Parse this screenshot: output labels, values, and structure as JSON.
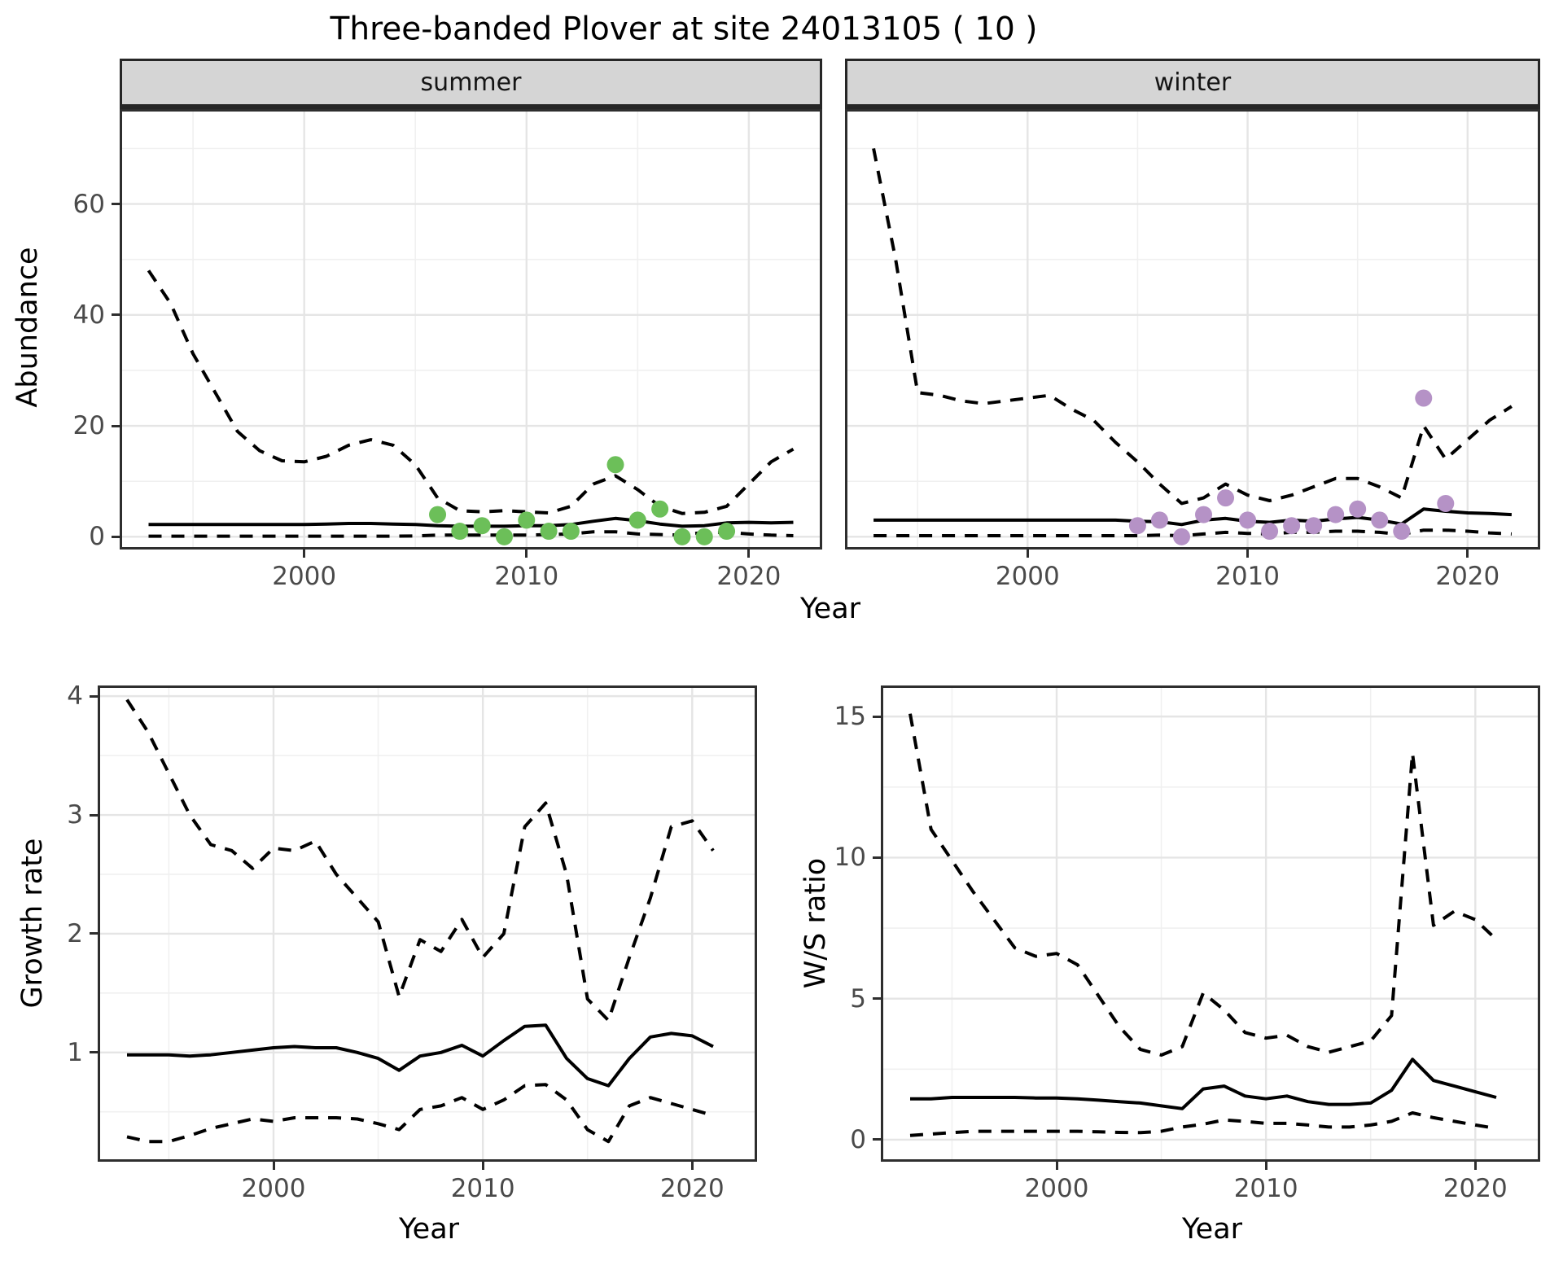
{
  "title": "Three-banded Plover at site 24013105 ( 10 )",
  "axes": {
    "x_label": "Year",
    "abundance_label": "Abundance",
    "growth_label": "Growth rate",
    "ws_label": "W/S ratio"
  },
  "facets": {
    "summer": "summer",
    "winter": "winter"
  },
  "colors": {
    "summer_points": "#6CBF59",
    "winter_points": "#B592C6",
    "line": "#000000",
    "grid_major": "#E5E5E5",
    "grid_minor": "#F0F0F0",
    "panel_border": "#2E2E2E",
    "strip_bg": "#D5D5D5",
    "tick_text": "#4A4A4A"
  },
  "chart_data": [
    {
      "id": "summer",
      "type": "line",
      "facet_label": "summer",
      "xlabel": "Year",
      "ylabel": "Abundance",
      "x": [
        1993,
        1994,
        1995,
        1996,
        1997,
        1998,
        1999,
        2000,
        2001,
        2002,
        2003,
        2004,
        2005,
        2006,
        2007,
        2008,
        2009,
        2010,
        2011,
        2012,
        2013,
        2014,
        2015,
        2016,
        2017,
        2018,
        2019,
        2020,
        2021,
        2022
      ],
      "series": [
        {
          "name": "upper_ci",
          "style": "dashed",
          "values": [
            48,
            42,
            33,
            26,
            19,
            15.5,
            13.7,
            13.5,
            14.5,
            16.5,
            17.5,
            16.5,
            13,
            7,
            4.7,
            4.5,
            4.7,
            4.5,
            4.3,
            5.5,
            9.5,
            11,
            8.5,
            5.5,
            4.2,
            4.4,
            5.5,
            9.5,
            13.5,
            15.8
          ]
        },
        {
          "name": "estimate",
          "style": "solid",
          "values": [
            2.2,
            2.2,
            2.2,
            2.2,
            2.2,
            2.2,
            2.2,
            2.2,
            2.3,
            2.4,
            2.4,
            2.3,
            2.2,
            2.0,
            1.9,
            1.9,
            1.9,
            2.0,
            2.0,
            2.2,
            2.8,
            3.3,
            2.9,
            2.3,
            1.9,
            2.0,
            2.5,
            2.6,
            2.5,
            2.6
          ]
        },
        {
          "name": "lower_ci",
          "style": "dashed",
          "values": [
            0.1,
            0.1,
            0.1,
            0.1,
            0.1,
            0.1,
            0.1,
            0.1,
            0.1,
            0.1,
            0.1,
            0.1,
            0.15,
            0.3,
            0.3,
            0.3,
            0.3,
            0.3,
            0.4,
            0.5,
            0.9,
            0.9,
            0.5,
            0.4,
            0.3,
            0.8,
            0.8,
            0.5,
            0.3,
            0.2
          ]
        }
      ],
      "points": {
        "name": "observed_counts",
        "color": "#6CBF59",
        "x": [
          2006,
          2007,
          2008,
          2009,
          2010,
          2011,
          2012,
          2014,
          2015,
          2016,
          2017,
          2018,
          2019
        ],
        "y": [
          4,
          1,
          2,
          0,
          3,
          1,
          1,
          13,
          3,
          5,
          0,
          0,
          1
        ]
      },
      "xlim": [
        1991.7,
        2023.3
      ],
      "ylim": [
        -2.3,
        77.1
      ],
      "xticks": [
        2000,
        2010,
        2020
      ],
      "xminor": [
        1995,
        2005,
        2015
      ],
      "yticks": [
        0,
        20,
        40,
        60
      ],
      "yminor": [
        10,
        30,
        50,
        70
      ],
      "show_yticks": true
    },
    {
      "id": "winter",
      "type": "line",
      "facet_label": "winter",
      "xlabel": "Year",
      "ylabel": "Abundance",
      "x": [
        1993,
        1994,
        1995,
        1996,
        1997,
        1998,
        1999,
        2000,
        2001,
        2002,
        2003,
        2004,
        2005,
        2006,
        2007,
        2008,
        2009,
        2010,
        2011,
        2012,
        2013,
        2014,
        2015,
        2016,
        2017,
        2018,
        2019,
        2020,
        2021,
        2022
      ],
      "series": [
        {
          "name": "upper_ci",
          "style": "dashed",
          "values": [
            70,
            50,
            26,
            25.5,
            24.5,
            24,
            24.5,
            25,
            25.5,
            23,
            21,
            17,
            13.5,
            9.5,
            6,
            7,
            9.5,
            7.5,
            6.5,
            7.5,
            9,
            10.5,
            10.5,
            9,
            7,
            20,
            14,
            17.5,
            21,
            23.5
          ]
        },
        {
          "name": "estimate",
          "style": "solid",
          "values": [
            3,
            3,
            3,
            3,
            3,
            3,
            3,
            3,
            3,
            3,
            3,
            3,
            2.8,
            2.7,
            2.2,
            3,
            3.3,
            2.8,
            2.6,
            3,
            2.8,
            3.2,
            3.5,
            3,
            2.3,
            5,
            4.6,
            4.3,
            4.2,
            4
          ]
        },
        {
          "name": "lower_ci",
          "style": "dashed",
          "values": [
            0.2,
            0.2,
            0.2,
            0.2,
            0.2,
            0.2,
            0.2,
            0.2,
            0.2,
            0.2,
            0.2,
            0.2,
            0.2,
            0.3,
            0.2,
            0.5,
            0.8,
            0.6,
            0.5,
            0.8,
            0.8,
            1,
            1,
            0.8,
            0.4,
            1.2,
            1.2,
            1,
            0.7,
            0.5
          ]
        }
      ],
      "points": {
        "name": "observed_counts",
        "color": "#B592C6",
        "x": [
          2005,
          2006,
          2007,
          2008,
          2009,
          2010,
          2011,
          2012,
          2013,
          2014,
          2015,
          2016,
          2017,
          2018,
          2019
        ],
        "y": [
          2,
          3,
          0,
          4,
          7,
          3,
          1,
          2,
          2,
          4,
          5,
          3,
          1,
          25,
          6
        ]
      },
      "xlim": [
        1991.7,
        2023.3
      ],
      "ylim": [
        -2.3,
        77.1
      ],
      "xticks": [
        2000,
        2010,
        2020
      ],
      "xminor": [
        1995,
        2005,
        2015
      ],
      "yticks": [
        0,
        20,
        40,
        60
      ],
      "yminor": [
        10,
        30,
        50,
        70
      ],
      "show_yticks": false
    },
    {
      "id": "growth",
      "type": "line",
      "facet_label": "",
      "xlabel": "Year",
      "ylabel": "Growth rate",
      "x": [
        1993,
        1994,
        1995,
        1996,
        1997,
        1998,
        1999,
        2000,
        2001,
        2002,
        2003,
        2004,
        2005,
        2006,
        2007,
        2008,
        2009,
        2010,
        2011,
        2012,
        2013,
        2014,
        2015,
        2016,
        2017,
        2018,
        2019,
        2020,
        2021
      ],
      "series": [
        {
          "name": "upper_ci",
          "style": "dashed",
          "values": [
            3.97,
            3.7,
            3.35,
            3.0,
            2.75,
            2.7,
            2.55,
            2.72,
            2.7,
            2.78,
            2.5,
            2.3,
            2.1,
            1.47,
            1.95,
            1.85,
            2.12,
            1.8,
            2.0,
            2.9,
            3.1,
            2.5,
            1.45,
            1.27,
            1.8,
            2.3,
            2.9,
            2.95,
            2.7
          ]
        },
        {
          "name": "estimate",
          "style": "solid",
          "values": [
            0.98,
            0.98,
            0.98,
            0.97,
            0.98,
            1.0,
            1.02,
            1.04,
            1.05,
            1.04,
            1.04,
            1.0,
            0.95,
            0.85,
            0.97,
            1.0,
            1.06,
            0.97,
            1.1,
            1.22,
            1.23,
            0.95,
            0.78,
            0.72,
            0.95,
            1.13,
            1.16,
            1.14,
            1.05
          ]
        },
        {
          "name": "lower_ci",
          "style": "dashed",
          "values": [
            0.29,
            0.25,
            0.25,
            0.3,
            0.36,
            0.4,
            0.44,
            0.42,
            0.45,
            0.45,
            0.45,
            0.44,
            0.4,
            0.35,
            0.52,
            0.55,
            0.62,
            0.52,
            0.6,
            0.72,
            0.73,
            0.6,
            0.35,
            0.25,
            0.55,
            0.62,
            0.57,
            0.52,
            0.47
          ]
        }
      ],
      "points": null,
      "xlim": [
        1991.6,
        2023.1
      ],
      "ylim": [
        0.08,
        4.09
      ],
      "xticks": [
        2000,
        2010,
        2020
      ],
      "xminor": [
        1995,
        2005,
        2015
      ],
      "yticks": [
        1,
        2,
        3,
        4
      ],
      "yminor": [
        0.5,
        1.5,
        2.5,
        3.5
      ],
      "show_yticks": true
    },
    {
      "id": "ws",
      "type": "line",
      "facet_label": "",
      "xlabel": "Year",
      "ylabel": "W/S ratio",
      "x": [
        1993,
        1994,
        1995,
        1996,
        1997,
        1998,
        1999,
        2000,
        2001,
        2002,
        2003,
        2004,
        2005,
        2006,
        2007,
        2008,
        2009,
        2010,
        2011,
        2012,
        2013,
        2014,
        2015,
        2016,
        2017,
        2018,
        2019,
        2020,
        2021
      ],
      "series": [
        {
          "name": "upper_ci",
          "style": "dashed",
          "values": [
            15.1,
            11.0,
            9.9,
            8.8,
            7.8,
            6.8,
            6.5,
            6.6,
            6.2,
            5.1,
            4.0,
            3.2,
            3.0,
            3.3,
            5.2,
            4.6,
            3.8,
            3.6,
            3.7,
            3.3,
            3.1,
            3.3,
            3.5,
            4.4,
            13.7,
            7.6,
            8.1,
            7.8,
            7.1
          ]
        },
        {
          "name": "estimate",
          "style": "solid",
          "values": [
            1.45,
            1.45,
            1.5,
            1.5,
            1.5,
            1.5,
            1.48,
            1.48,
            1.45,
            1.4,
            1.35,
            1.3,
            1.2,
            1.1,
            1.8,
            1.9,
            1.55,
            1.45,
            1.55,
            1.35,
            1.25,
            1.25,
            1.3,
            1.75,
            2.85,
            2.1,
            1.9,
            1.7,
            1.5
          ]
        },
        {
          "name": "lower_ci",
          "style": "dashed",
          "values": [
            0.15,
            0.2,
            0.25,
            0.3,
            0.3,
            0.3,
            0.3,
            0.3,
            0.3,
            0.28,
            0.26,
            0.25,
            0.3,
            0.45,
            0.55,
            0.7,
            0.65,
            0.58,
            0.58,
            0.52,
            0.45,
            0.45,
            0.52,
            0.65,
            0.95,
            0.78,
            0.65,
            0.52,
            0.4
          ]
        }
      ],
      "points": null,
      "xlim": [
        1991.6,
        2023.1
      ],
      "ylim": [
        -0.78,
        16.1
      ],
      "xticks": [
        2000,
        2010,
        2020
      ],
      "xminor": [
        1995,
        2005,
        2015
      ],
      "yticks": [
        0,
        5,
        10,
        15
      ],
      "yminor": [
        2.5,
        7.5,
        12.5
      ],
      "show_yticks": true
    }
  ]
}
